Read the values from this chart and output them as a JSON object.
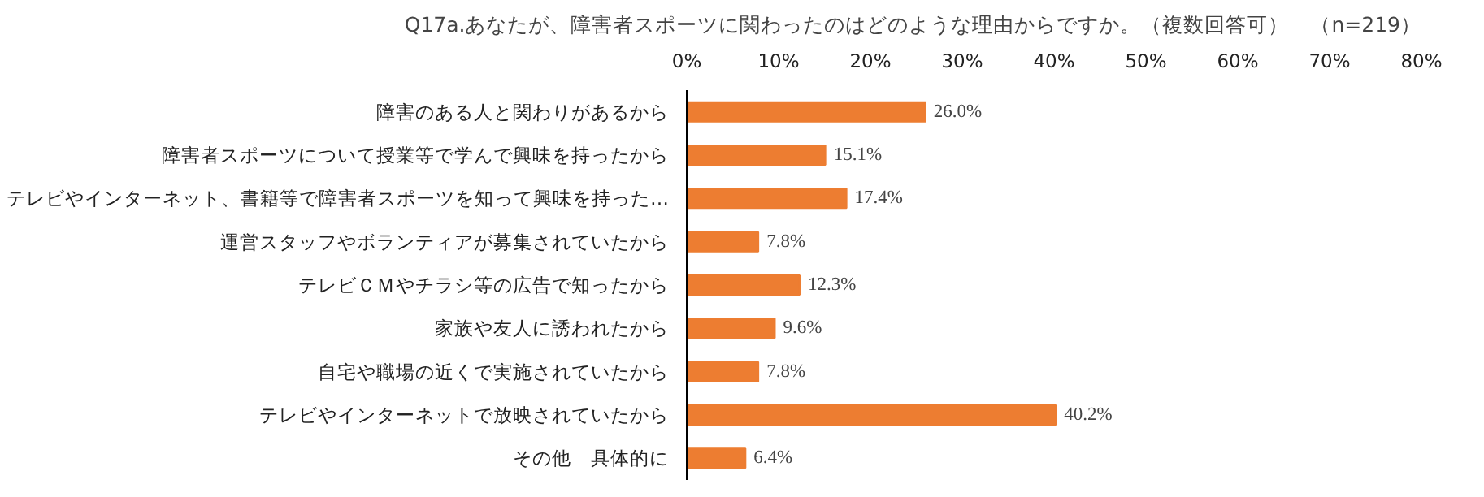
{
  "chart_data": {
    "type": "bar",
    "orientation": "horizontal",
    "title": "Q17a.あなたが、障害者スポーツに関わったのはどのような理由からですか。（複数回答可）　（n=219）",
    "categories": [
      "障害のある人と関わりがあるから",
      "障害者スポーツについて授業等で学んで興味を持ったから",
      "テレビやインターネット、書籍等で障害者スポーツを知って興味を持った…",
      "運営スタッフやボランティアが募集されていたから",
      "テレビＣＭやチラシ等の広告で知ったから",
      "家族や友人に誘われたから",
      "自宅や職場の近くで実施されていたから",
      "テレビやインターネットで放映されていたから",
      "その他　具体的に"
    ],
    "values": [
      26.0,
      15.1,
      17.4,
      7.8,
      12.3,
      9.6,
      7.8,
      40.2,
      6.4
    ],
    "value_labels": [
      "26.0%",
      "15.1%",
      "17.4%",
      "7.8%",
      "12.3%",
      "9.6%",
      "7.8%",
      "40.2%",
      "6.4%"
    ],
    "color": "#ed7d31",
    "xlim": [
      0,
      80
    ],
    "xticks": [
      {
        "value": 0,
        "label": "0%"
      },
      {
        "value": 10,
        "label": "10%"
      },
      {
        "value": 20,
        "label": "20%"
      },
      {
        "value": 30,
        "label": "30%"
      },
      {
        "value": 40,
        "label": "40%"
      },
      {
        "value": 50,
        "label": "50%"
      },
      {
        "value": 60,
        "label": "60%"
      },
      {
        "value": 70,
        "label": "70%"
      },
      {
        "value": 80,
        "label": "80%"
      }
    ],
    "grid": false
  }
}
